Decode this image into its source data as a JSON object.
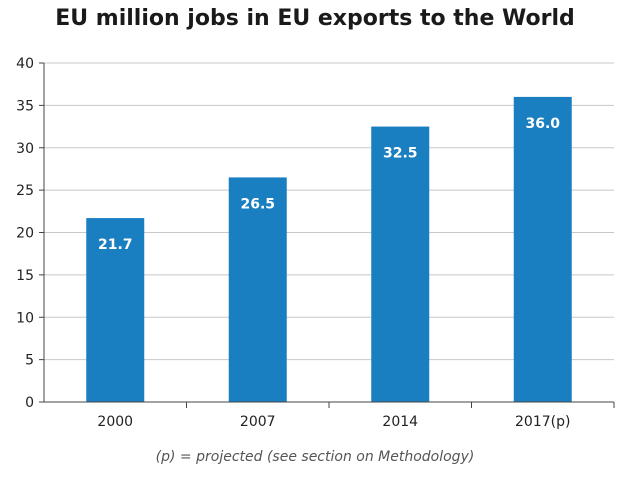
{
  "chart_data": {
    "type": "bar",
    "title": "EU million jobs in EU exports to the World",
    "categories": [
      "2000",
      "2007",
      "2014",
      "2017(p)"
    ],
    "values": [
      21.7,
      26.5,
      32.5,
      36.0
    ],
    "data_labels": [
      "21.7",
      "26.5",
      "32.5",
      "36.0"
    ],
    "y_ticks": [
      "0",
      "5",
      "10",
      "15",
      "20",
      "25",
      "30",
      "35",
      "40"
    ],
    "ylim": [
      0,
      40
    ],
    "grid": "horizontal",
    "bar_color": "#1a7fc1",
    "label_color": "#ffffff",
    "footnote": "(p) = projected (see section on Methodology)"
  }
}
